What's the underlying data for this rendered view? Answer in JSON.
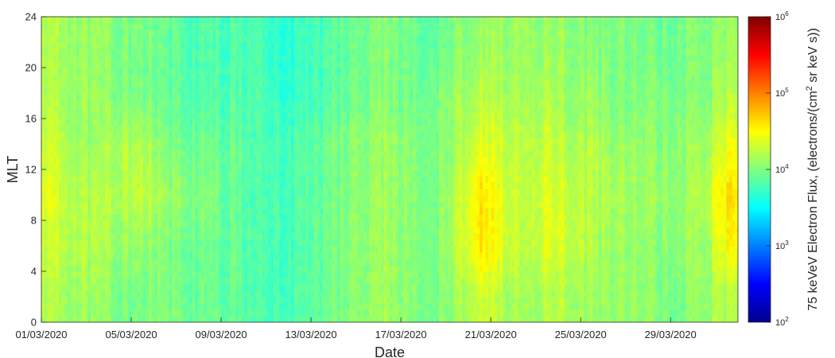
{
  "chart_data": {
    "type": "heatmap",
    "title": "",
    "xlabel": "Date",
    "ylabel": "MLT",
    "x_start": "01/03/2020",
    "x_end": "31/03/2020",
    "x_tick_labels": [
      "01/03/2020",
      "05/03/2020",
      "09/03/2020",
      "13/03/2020",
      "17/03/2020",
      "21/03/2020",
      "25/03/2020",
      "29/03/2020"
    ],
    "ylim": [
      0,
      24
    ],
    "y_ticks": [
      0,
      4,
      8,
      12,
      16,
      20,
      24
    ],
    "colorbar": {
      "label_main": "75 keVeV Electron Flux, (electrons/(cm",
      "label_sup": "2",
      "label_tail": " sr keV s))",
      "scale": "log",
      "range": [
        100,
        1000000
      ],
      "ticks": [
        {
          "base": "10",
          "exp": "2"
        },
        {
          "base": "10",
          "exp": "3"
        },
        {
          "base": "10",
          "exp": "4"
        },
        {
          "base": "10",
          "exp": "5"
        },
        {
          "base": "10",
          "exp": "6"
        }
      ],
      "colormap": "jet"
    },
    "daily_log10_flux_by_mlt_band": {
      "mlt_bands": [
        "0-4",
        "4-8",
        "8-12",
        "12-16",
        "16-20",
        "20-24"
      ],
      "days": [
        {
          "date": "01/03/2020",
          "values": [
            4.2,
            4.3,
            4.4,
            4.3,
            4.2,
            4.2
          ]
        },
        {
          "date": "02/03/2020",
          "values": [
            4.1,
            4.2,
            4.2,
            4.1,
            4.1,
            4.1
          ]
        },
        {
          "date": "03/03/2020",
          "values": [
            4.1,
            4.2,
            4.2,
            4.1,
            4.1,
            4.1
          ]
        },
        {
          "date": "04/03/2020",
          "values": [
            4.0,
            4.1,
            4.2,
            4.2,
            4.0,
            4.0
          ]
        },
        {
          "date": "05/03/2020",
          "values": [
            4.0,
            4.1,
            4.3,
            4.2,
            4.0,
            4.0
          ]
        },
        {
          "date": "06/03/2020",
          "values": [
            4.0,
            4.0,
            4.1,
            4.0,
            3.9,
            3.9
          ]
        },
        {
          "date": "07/03/2020",
          "values": [
            3.9,
            3.9,
            4.0,
            3.9,
            3.8,
            3.8
          ]
        },
        {
          "date": "08/03/2020",
          "values": [
            3.9,
            3.9,
            4.0,
            3.9,
            3.8,
            3.8
          ]
        },
        {
          "date": "09/03/2020",
          "values": [
            3.9,
            3.9,
            3.9,
            3.9,
            3.8,
            3.8
          ]
        },
        {
          "date": "10/03/2020",
          "values": [
            3.8,
            3.8,
            3.8,
            3.8,
            3.8,
            3.8
          ]
        },
        {
          "date": "11/03/2020",
          "values": [
            3.8,
            3.8,
            3.8,
            3.8,
            3.7,
            3.7
          ]
        },
        {
          "date": "12/03/2020",
          "values": [
            3.8,
            3.8,
            3.8,
            3.8,
            3.7,
            3.7
          ]
        },
        {
          "date": "13/03/2020",
          "values": [
            3.9,
            3.9,
            3.9,
            3.9,
            3.8,
            3.8
          ]
        },
        {
          "date": "14/03/2020",
          "values": [
            4.0,
            4.0,
            4.0,
            4.0,
            3.9,
            3.9
          ]
        },
        {
          "date": "15/03/2020",
          "values": [
            4.1,
            4.1,
            4.1,
            4.1,
            4.0,
            4.0
          ]
        },
        {
          "date": "16/03/2020",
          "values": [
            4.1,
            4.1,
            4.1,
            4.1,
            4.0,
            4.0
          ]
        },
        {
          "date": "17/03/2020",
          "values": [
            4.0,
            4.0,
            4.0,
            4.0,
            3.9,
            3.9
          ]
        },
        {
          "date": "18/03/2020",
          "values": [
            4.0,
            4.0,
            4.0,
            4.0,
            4.0,
            3.9
          ]
        },
        {
          "date": "19/03/2020",
          "values": [
            4.1,
            4.2,
            4.2,
            4.1,
            4.1,
            4.0
          ]
        },
        {
          "date": "20/03/2020",
          "values": [
            4.3,
            4.6,
            4.6,
            4.4,
            4.2,
            4.1
          ]
        },
        {
          "date": "21/03/2020",
          "values": [
            4.2,
            4.4,
            4.4,
            4.3,
            4.2,
            4.1
          ]
        },
        {
          "date": "22/03/2020",
          "values": [
            4.1,
            4.2,
            4.2,
            4.2,
            4.1,
            4.1
          ]
        },
        {
          "date": "23/03/2020",
          "values": [
            4.2,
            4.4,
            4.4,
            4.3,
            4.2,
            4.1
          ]
        },
        {
          "date": "24/03/2020",
          "values": [
            4.2,
            4.3,
            4.3,
            4.2,
            4.1,
            4.1
          ]
        },
        {
          "date": "25/03/2020",
          "values": [
            4.1,
            4.2,
            4.2,
            4.2,
            4.1,
            4.0
          ]
        },
        {
          "date": "26/03/2020",
          "values": [
            4.1,
            4.1,
            4.2,
            4.1,
            4.0,
            4.0
          ]
        },
        {
          "date": "27/03/2020",
          "values": [
            4.1,
            4.1,
            4.1,
            4.1,
            4.0,
            4.0
          ]
        },
        {
          "date": "28/03/2020",
          "values": [
            4.0,
            4.0,
            4.1,
            4.0,
            4.0,
            3.9
          ]
        },
        {
          "date": "29/03/2020",
          "values": [
            4.0,
            4.1,
            4.1,
            4.1,
            4.0,
            4.0
          ]
        },
        {
          "date": "30/03/2020",
          "values": [
            4.1,
            4.1,
            4.2,
            4.1,
            4.0,
            4.0
          ]
        },
        {
          "date": "31/03/2020",
          "values": [
            4.2,
            4.5,
            4.6,
            4.4,
            4.2,
            4.1
          ]
        }
      ]
    },
    "grid": false,
    "legend": "colorbar-right"
  }
}
